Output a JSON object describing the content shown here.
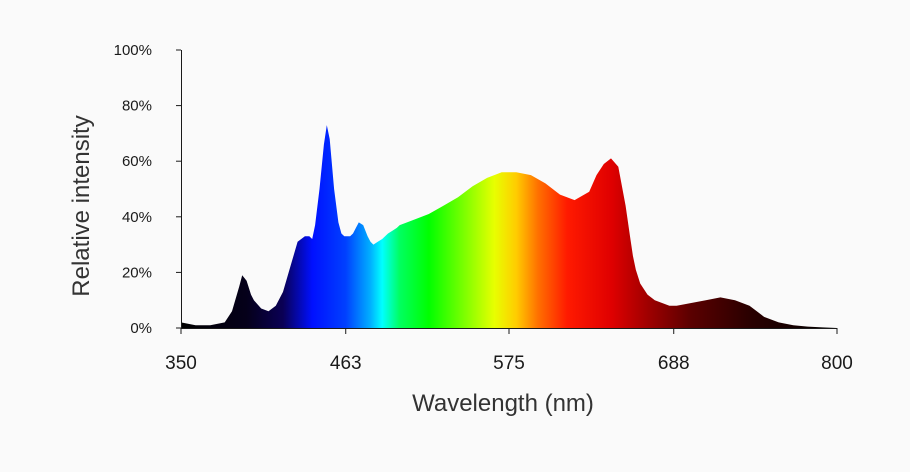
{
  "chart_data": {
    "type": "area",
    "title": "",
    "xlabel": "Wavelength (nm)",
    "ylabel": "Relative intensity",
    "xlim": [
      350,
      800
    ],
    "ylim": [
      0,
      100
    ],
    "x_ticks": [
      350,
      463,
      575,
      688,
      800
    ],
    "x_tick_labels": [
      "350",
      "463",
      "575",
      "688",
      "800"
    ],
    "y_ticks": [
      0,
      20,
      40,
      60,
      80,
      100
    ],
    "y_tick_labels": [
      "0%",
      "20%",
      "40%",
      "60%",
      "80%",
      "100%"
    ],
    "grid": false,
    "legend": "none",
    "fill": "wavelength-colored spectrum",
    "series": [
      {
        "x": [
          350,
          360,
          370,
          380,
          385,
          390,
          392,
          395,
          398,
          400,
          405,
          410,
          415,
          420,
          425,
          430,
          435,
          438,
          440,
          442,
          445,
          448,
          450,
          452,
          455,
          458,
          460,
          462,
          464,
          466,
          468,
          470,
          472,
          475,
          478,
          480,
          482,
          485,
          488,
          490,
          492,
          495,
          498,
          500,
          505,
          510,
          520,
          530,
          540,
          550,
          560,
          570,
          580,
          590,
          600,
          610,
          620,
          630,
          635,
          640,
          645,
          650,
          655,
          658,
          660,
          662,
          665,
          670,
          675,
          680,
          685,
          690,
          700,
          710,
          720,
          730,
          740,
          745,
          750,
          760,
          770,
          780,
          790,
          800
        ],
        "y": [
          2,
          1,
          1,
          2,
          6,
          15,
          19,
          17,
          12,
          10,
          7,
          6,
          8,
          13,
          22,
          31,
          33,
          33,
          32,
          37,
          50,
          66,
          73,
          68,
          50,
          38,
          34,
          33,
          33,
          33,
          34,
          36,
          38,
          37,
          33,
          31,
          30,
          31,
          32,
          33,
          34,
          35,
          36,
          37,
          38,
          39,
          41,
          44,
          47,
          51,
          54,
          56,
          56,
          55,
          52,
          48,
          46,
          49,
          55,
          59,
          61,
          58,
          44,
          33,
          26,
          21,
          16,
          12,
          10,
          9,
          8,
          8,
          9,
          10,
          11,
          10,
          8,
          6,
          4,
          2,
          1,
          0.5,
          0.2,
          0
        ]
      }
    ]
  }
}
